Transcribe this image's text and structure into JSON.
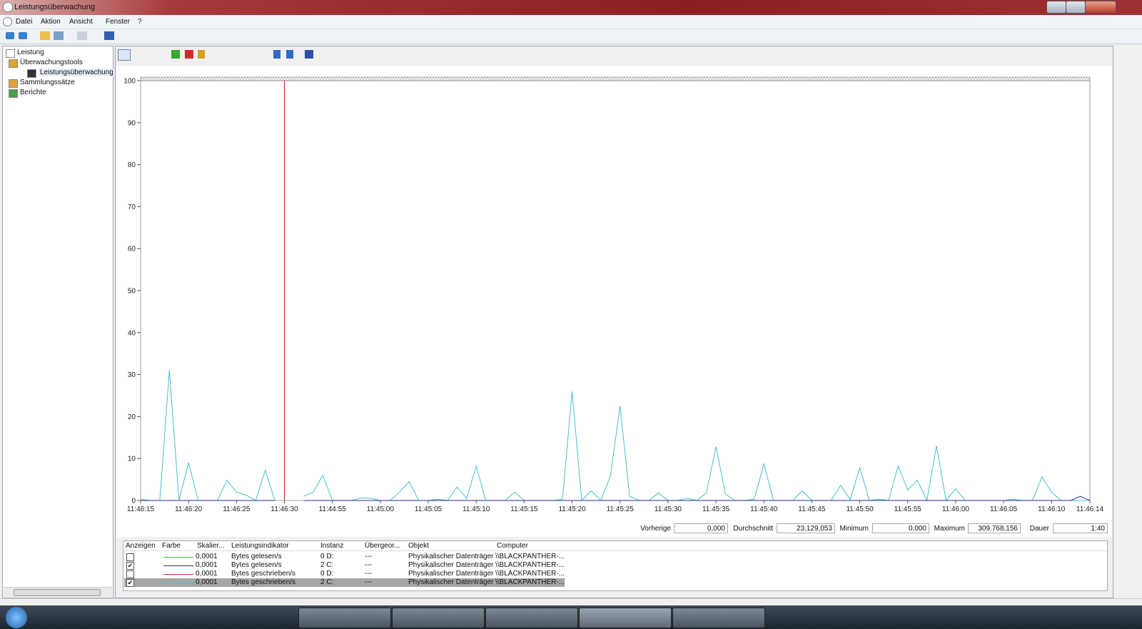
{
  "window": {
    "title": "Leistungsüberwachung"
  },
  "menu": [
    "Datei",
    "Aktion",
    "Ansicht",
    "Fenster",
    "?"
  ],
  "tree": [
    "Leistung",
    "Überwachungstools",
    "Leistungsüberwachung",
    "Sammlungssätze",
    "Berichte"
  ],
  "chart_data": {
    "type": "line",
    "categories": [
      "11:46:15",
      null,
      null,
      null,
      null,
      "11:46:20",
      null,
      null,
      null,
      null,
      "11:46:25",
      null,
      null,
      null,
      null,
      "11:46:30",
      null,
      null,
      null,
      null,
      "11:44:55",
      null,
      null,
      null,
      null,
      "11:45:00",
      null,
      null,
      null,
      null,
      "11:45:05",
      null,
      null,
      null,
      null,
      "11:45:10",
      null,
      null,
      null,
      null,
      "11:45:15",
      null,
      null,
      null,
      null,
      "11:45:20",
      null,
      null,
      null,
      null,
      "11:45:25",
      null,
      null,
      null,
      null,
      "11:45:30",
      null,
      null,
      null,
      null,
      "11:45:35",
      null,
      null,
      null,
      null,
      "11:45:40",
      null,
      null,
      null,
      null,
      "11:45:45",
      null,
      null,
      null,
      null,
      "11:45:50",
      null,
      null,
      null,
      null,
      "11:45:55",
      null,
      null,
      null,
      null,
      "11:46:00",
      null,
      null,
      null,
      null,
      "11:46:05",
      null,
      null,
      null,
      null,
      "11:46:10",
      null,
      null,
      null,
      "11:46:14"
    ],
    "series": [
      {
        "color": "#47bfd0",
        "values": [
          0.3,
          0,
          0,
          31,
          0,
          9,
          0,
          0,
          0,
          4.8,
          2,
          1.3,
          0,
          7.2,
          0,
          null,
          null,
          1,
          2,
          6,
          0,
          0,
          0,
          0.6,
          0.5,
          0,
          0,
          2,
          4.5,
          0,
          0,
          0.3,
          0,
          3.2,
          0.5,
          8.2,
          0,
          0,
          0,
          2,
          0,
          0,
          0,
          0,
          0.3,
          26,
          0,
          2.3,
          0,
          5.8,
          22.5,
          1,
          0,
          0,
          1.8,
          0,
          0,
          0.5,
          0,
          1.8,
          12.8,
          1.5,
          0,
          0,
          0.3,
          8.7,
          0,
          0,
          0,
          2.3,
          0,
          0,
          0,
          3.6,
          0.2,
          7.8,
          0,
          0.3,
          0,
          8.2,
          2.5,
          4.8,
          0,
          13,
          0,
          2.8,
          0,
          0,
          0,
          0,
          0,
          0.3,
          0,
          0,
          5.6,
          2,
          0,
          0,
          0,
          0
        ]
      },
      {
        "color": "#2b2b96",
        "values": [
          0,
          0,
          0,
          0,
          0,
          0,
          0,
          0,
          0,
          0,
          0,
          0,
          0,
          0,
          0,
          null,
          null,
          0,
          0,
          0,
          0,
          0,
          0,
          0,
          0,
          0,
          0,
          0,
          0,
          0,
          0,
          0,
          0,
          0,
          0,
          0,
          0,
          0,
          0,
          0,
          0,
          0,
          0,
          0,
          0,
          0,
          0,
          0,
          0,
          0,
          0,
          0,
          0,
          0,
          0,
          0,
          0,
          0,
          0,
          0,
          0,
          0,
          0,
          0,
          0,
          0,
          0,
          0,
          0,
          0,
          0,
          0,
          0,
          0,
          0,
          0,
          0,
          0,
          0,
          0,
          0,
          0,
          0,
          0,
          0,
          0,
          0,
          0,
          0,
          0,
          0,
          0,
          0,
          0,
          0,
          0,
          0,
          0,
          1,
          0
        ]
      }
    ],
    "ylim": [
      0,
      100
    ],
    "yticks": [
      0,
      10,
      20,
      30,
      40,
      50,
      60,
      70,
      80,
      90,
      100
    ],
    "grid": false
  },
  "stats": [
    {
      "label": "Vorherige",
      "value": "0,000"
    },
    {
      "label": "Durchschnitt",
      "value": "23.129,053"
    },
    {
      "label": "Minimum",
      "value": "0,000"
    },
    {
      "label": "Maximum",
      "value": "309.768,156"
    },
    {
      "label": "Dauer",
      "value": "1:40"
    }
  ],
  "table": {
    "columns": [
      "Anzeigen",
      "Farbe",
      "Skalier...",
      "Leistungsindikator",
      "Instanz",
      "Übergeor...",
      "Objekt",
      "Computer"
    ],
    "rows": [
      {
        "shown": false,
        "selected": false,
        "color": "#3ec83e",
        "cells": [
          "0,0001",
          "Bytes gelesen/s",
          "0 D:",
          "---",
          "Physikalischer Datenträger",
          "\\\\BLACKPANTHER-..."
        ]
      },
      {
        "shown": true,
        "selected": false,
        "color": "#2b2b96",
        "cells": [
          "0,0001",
          "Bytes gelesen/s",
          "2 C:",
          "---",
          "Physikalischer Datenträger",
          "\\\\BLACKPANTHER-..."
        ]
      },
      {
        "shown": false,
        "selected": false,
        "color": "#c0304a",
        "cells": [
          "0,0001",
          "Bytes geschrieben/s",
          "0 D:",
          "---",
          "Physikalischer Datenträger",
          "\\\\BLACKPANTHER-..."
        ]
      },
      {
        "shown": true,
        "selected": true,
        "color": "#47bfd0",
        "cells": [
          "0,0001",
          "Bytes geschrieben/s",
          "2 C:",
          "---",
          "Physikalischer Datenträger",
          "\\\\BLACKPANTHER-..."
        ]
      }
    ]
  }
}
